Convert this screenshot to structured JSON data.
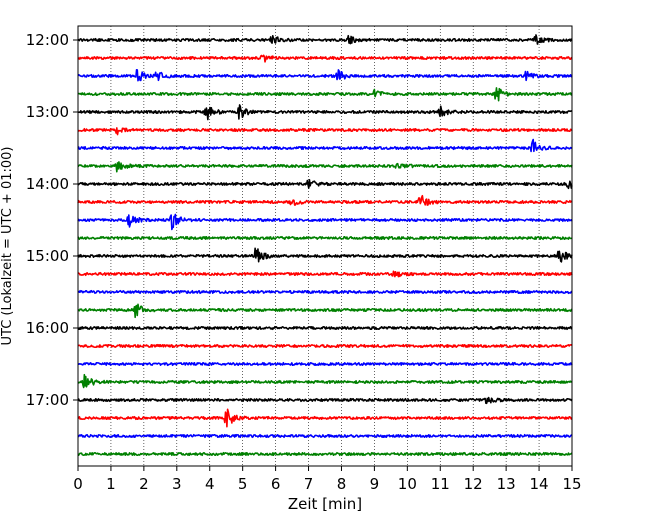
{
  "chart_data": {
    "type": "line",
    "subtype": "helicorder",
    "title": "",
    "xlabel": "Zeit  [min]",
    "ylabel": "UTC (Lokalzeit = UTC + 01:00)",
    "xlim": [
      0,
      15
    ],
    "x_ticks": [
      0,
      1,
      2,
      3,
      4,
      5,
      6,
      7,
      8,
      9,
      10,
      11,
      12,
      13,
      14,
      15
    ],
    "x_tick_labels": [
      "0",
      "1",
      "2",
      "3",
      "4",
      "5",
      "6",
      "7",
      "8",
      "9",
      "10",
      "11",
      "12",
      "13",
      "14",
      "15"
    ],
    "y_tick_labels": [
      "12:00",
      "13:00",
      "14:00",
      "15:00",
      "16:00",
      "17:00"
    ],
    "row_minutes": 15,
    "rows_per_hour": 4,
    "grid": "vertical dotted",
    "color_cycle": [
      "#000000",
      "#ff0000",
      "#0000ff",
      "#008000"
    ],
    "rows": [
      {
        "start": "12:00",
        "events": [
          {
            "t": 5.9,
            "a": 0.35
          },
          {
            "t": 8.2,
            "a": 0.3
          },
          {
            "t": 13.9,
            "a": 0.3
          }
        ]
      },
      {
        "start": "12:15",
        "events": [
          {
            "t": 5.6,
            "a": 0.3
          }
        ]
      },
      {
        "start": "12:30",
        "events": [
          {
            "t": 1.8,
            "a": 0.5
          },
          {
            "t": 2.4,
            "a": 0.35
          },
          {
            "t": 7.9,
            "a": 0.4
          },
          {
            "t": 13.6,
            "a": 0.3
          }
        ]
      },
      {
        "start": "12:45",
        "events": [
          {
            "t": 12.7,
            "a": 0.6
          },
          {
            "t": 9.0,
            "a": 0.25
          }
        ]
      },
      {
        "start": "13:00",
        "events": [
          {
            "t": 3.9,
            "a": 0.6
          },
          {
            "t": 4.9,
            "a": 0.5
          },
          {
            "t": 11.0,
            "a": 0.35
          }
        ]
      },
      {
        "start": "13:15",
        "events": [
          {
            "t": 1.2,
            "a": 0.3
          }
        ]
      },
      {
        "start": "13:30",
        "events": [
          {
            "t": 13.8,
            "a": 0.6
          }
        ]
      },
      {
        "start": "13:45",
        "events": [
          {
            "t": 1.2,
            "a": 0.45
          },
          {
            "t": 9.7,
            "a": 0.3
          }
        ]
      },
      {
        "start": "14:00",
        "events": [
          {
            "t": 7.0,
            "a": 0.35
          },
          {
            "t": 14.9,
            "a": 0.35
          }
        ]
      },
      {
        "start": "14:15",
        "events": [
          {
            "t": 6.5,
            "a": 0.3
          },
          {
            "t": 10.4,
            "a": 0.55
          }
        ]
      },
      {
        "start": "14:30",
        "events": [
          {
            "t": 1.55,
            "a": 0.5
          },
          {
            "t": 2.85,
            "a": 0.6
          }
        ]
      },
      {
        "start": "14:45",
        "events": []
      },
      {
        "start": "15:00",
        "events": [
          {
            "t": 5.4,
            "a": 0.65
          },
          {
            "t": 14.6,
            "a": 0.6
          }
        ]
      },
      {
        "start": "15:15",
        "events": [
          {
            "t": 9.6,
            "a": 0.25
          }
        ]
      },
      {
        "start": "15:30",
        "events": []
      },
      {
        "start": "15:45",
        "events": [
          {
            "t": 1.75,
            "a": 0.6
          }
        ]
      },
      {
        "start": "16:00",
        "events": []
      },
      {
        "start": "16:15",
        "events": []
      },
      {
        "start": "16:30",
        "events": []
      },
      {
        "start": "16:45",
        "events": [
          {
            "t": 0.2,
            "a": 0.6
          }
        ]
      },
      {
        "start": "17:00",
        "events": [
          {
            "t": 12.4,
            "a": 0.25
          }
        ]
      },
      {
        "start": "17:15",
        "events": [
          {
            "t": 4.5,
            "a": 0.75
          }
        ]
      },
      {
        "start": "17:30",
        "events": []
      },
      {
        "start": "17:45",
        "events": []
      }
    ]
  }
}
